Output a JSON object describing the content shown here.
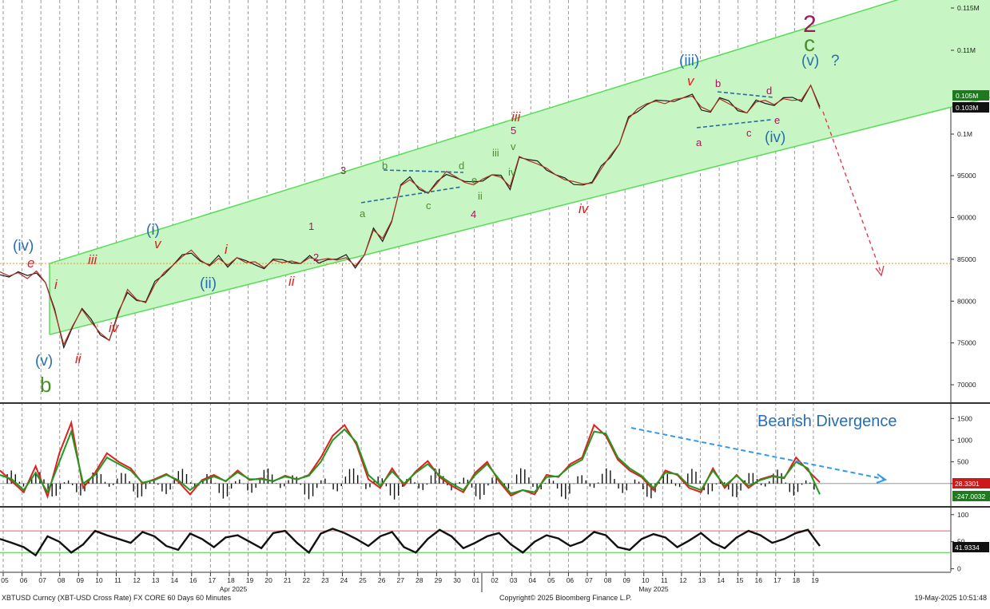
{
  "footer": {
    "instrument": "XBTUSD Curncy (XBT-USD Cross Rate) FX CORE 60 Days 60 Minutes",
    "copyright": "Copyright© 2025 Bloomberg Finance L.P.",
    "timestamp": "19-May-2025 10:51:48"
  },
  "colors": {
    "channel_fill": "#c8f5c4",
    "channel_line": "#55dd55",
    "price_line": "#b03020",
    "price_line2": "#1b1b1b",
    "macd_fast": "#e02020",
    "macd_slow": "#1e9a1e",
    "histogram": "#111111",
    "rsi_line": "#111111",
    "rsi_upper": "#e06060",
    "rsi_lower": "#40d040",
    "level_line": "#d6a040",
    "divergence_arrow": "#3399ee",
    "projection_arrow": "#e0304a",
    "wave_blue": "#2a6db0",
    "wave_red": "#dd2020",
    "wave_maroon": "#a0185a",
    "wave_green": "#4a8f2a"
  },
  "chart_data": [
    {
      "type": "line",
      "panel": "price",
      "title": "",
      "x_axis": {
        "ticks": [
          "05",
          "06",
          "07",
          "08",
          "09",
          "10",
          "11",
          "12",
          "13",
          "14",
          "16",
          "17",
          "18",
          "19",
          "20",
          "21",
          "22",
          "23",
          "24",
          "25",
          "26",
          "27",
          "28",
          "29",
          "30",
          "01",
          "02",
          "03",
          "04",
          "05",
          "06",
          "07",
          "08",
          "09",
          "10",
          "11",
          "12",
          "13",
          "14",
          "15",
          "16",
          "17",
          "18",
          "19"
        ],
        "month_labels": [
          "Apr 2025",
          "May 2025"
        ]
      },
      "y_axis": {
        "ticks": [
          "0.115M",
          "0.11M",
          "0.1M",
          "95000",
          "90000",
          "85000",
          "80000",
          "75000",
          "70000"
        ],
        "ylim": [
          68000,
          116000
        ]
      },
      "series": [
        {
          "x": [
            0,
            1,
            2,
            3,
            4,
            5,
            6,
            7,
            8,
            9,
            10,
            11,
            12,
            13,
            14,
            15,
            16,
            17,
            18,
            19,
            20,
            21,
            22,
            23,
            24,
            25,
            26,
            27,
            28,
            29,
            30,
            31,
            32,
            33,
            34,
            35,
            36,
            37,
            38,
            39,
            40,
            41,
            42,
            43,
            44,
            45,
            46,
            47,
            48,
            49,
            50,
            51,
            52,
            53,
            54,
            55,
            56,
            57,
            58,
            59,
            60,
            61,
            62,
            63,
            64,
            65,
            66,
            67,
            68,
            69,
            70,
            71,
            72,
            73,
            74,
            75,
            76,
            77,
            78,
            79,
            80,
            81,
            82,
            83,
            84,
            85,
            86,
            87,
            88,
            89,
            90
          ],
          "values": [
            83500,
            83000,
            83400,
            82700,
            83600,
            82200,
            78800,
            74800,
            77100,
            79000,
            77500,
            76200,
            75300,
            78500,
            81400,
            80200,
            79800,
            82000,
            83400,
            84300,
            85300,
            86100,
            84900,
            84200,
            85100,
            84300,
            85200,
            84600,
            84700,
            84000,
            84900,
            84600,
            84800,
            84500,
            85200,
            84900,
            85100,
            84900,
            85200,
            84200,
            85500,
            88500,
            87500,
            89600,
            93800,
            94500,
            93600,
            92900,
            94100,
            95500,
            94900,
            94200,
            93900,
            94600,
            95100,
            94800,
            93700,
            97300,
            96800,
            96400,
            95900,
            95100,
            94500,
            94300,
            94000,
            94100,
            95800,
            97400,
            98800,
            101800,
            103000,
            103600,
            103900,
            103600,
            104100,
            104300,
            104500,
            103200,
            102700,
            104200,
            103600,
            103000,
            102500,
            103800,
            104000,
            103500,
            104200,
            104000,
            104100,
            105800,
            103000
          ]
        }
      ],
      "reference_lines": [
        84500
      ],
      "price_badges": [
        "0.105M",
        "0.103M"
      ],
      "channel": {
        "lower": [
          [
            0,
            76000
          ],
          [
            90,
            101500
          ]
        ],
        "upper": [
          [
            0,
            84500
          ],
          [
            90,
            110300
          ]
        ]
      },
      "wave_labels": [
        {
          "text": "(iv)",
          "color": "wave_blue"
        },
        {
          "text": "e",
          "color": "wave_red"
        },
        {
          "text": "i",
          "color": "wave_red"
        },
        {
          "text": "(v)",
          "color": "wave_blue"
        },
        {
          "text": "b",
          "color": "wave_green"
        },
        {
          "text": "iii",
          "color": "wave_red"
        },
        {
          "text": "ii",
          "color": "wave_red"
        },
        {
          "text": "iv",
          "color": "wave_red"
        },
        {
          "text": "(i)",
          "color": "wave_blue"
        },
        {
          "text": "v",
          "color": "wave_red"
        },
        {
          "text": "(ii)",
          "color": "wave_blue"
        },
        {
          "text": "i",
          "color": "wave_red"
        },
        {
          "text": "ii",
          "color": "wave_red"
        },
        {
          "text": "1",
          "color": "wave_maroon"
        },
        {
          "text": "2",
          "color": "wave_maroon"
        },
        {
          "text": "3",
          "color": "wave_maroon"
        },
        {
          "text": "a",
          "color": "wave_green"
        },
        {
          "text": "b",
          "color": "wave_green"
        },
        {
          "text": "c",
          "color": "wave_green"
        },
        {
          "text": "d",
          "color": "wave_green"
        },
        {
          "text": "e",
          "color": "wave_green"
        },
        {
          "text": "ii",
          "color": "wave_green"
        },
        {
          "text": "4",
          "color": "wave_maroon"
        },
        {
          "text": "iii",
          "color": "wave_green"
        },
        {
          "text": "iv",
          "color": "wave_green"
        },
        {
          "text": "5",
          "color": "wave_maroon"
        },
        {
          "text": "v",
          "color": "wave_green"
        },
        {
          "text": "iii",
          "color": "wave_red"
        },
        {
          "text": "iv",
          "color": "wave_red"
        },
        {
          "text": "(iii)",
          "color": "wave_blue"
        },
        {
          "text": "v",
          "color": "wave_red"
        },
        {
          "text": "a",
          "color": "wave_maroon"
        },
        {
          "text": "b",
          "color": "wave_maroon"
        },
        {
          "text": "c",
          "color": "wave_maroon"
        },
        {
          "text": "d",
          "color": "wave_maroon"
        },
        {
          "text": "e",
          "color": "wave_maroon"
        },
        {
          "text": "(iv)",
          "color": "wave_blue"
        },
        {
          "text": "(v)",
          "color": "wave_blue"
        },
        {
          "text": "?",
          "color": "wave_blue"
        },
        {
          "text": "2",
          "color": "wave_maroon"
        },
        {
          "text": "c",
          "color": "wave_green"
        }
      ]
    },
    {
      "type": "line",
      "panel": "macd",
      "annotation": "Bearish Divergence",
      "y_axis": {
        "ticks": [
          "1500",
          "1000",
          "500",
          "0"
        ],
        "ylim": [
          -500,
          1800
        ]
      },
      "badges": [
        "28.3301",
        "-247.0032"
      ],
      "series": [
        {
          "color": "macd_fast",
          "values": [
            300,
            50,
            -200,
            400,
            -300,
            700,
            1400,
            -100,
            250,
            700,
            500,
            350,
            0,
            100,
            220,
            50,
            -250,
            80,
            200,
            50,
            300,
            80,
            120,
            50,
            180,
            90,
            200,
            600,
            1100,
            1350,
            900,
            100,
            -100,
            350,
            -50,
            280,
            520,
            150,
            -50,
            -200,
            250,
            500,
            50,
            -280,
            -150,
            -250,
            200,
            150,
            450,
            600,
            1350,
            1100,
            550,
            300,
            150,
            -150,
            300,
            200,
            -100,
            -200,
            350,
            -100,
            200,
            -100,
            100,
            180,
            120,
            600,
            300,
            28
          ]
        },
        {
          "color": "macd_slow",
          "values": [
            200,
            100,
            -150,
            250,
            -200,
            500,
            1200,
            0,
            200,
            600,
            450,
            300,
            20,
            80,
            200,
            80,
            -150,
            60,
            160,
            60,
            260,
            100,
            100,
            60,
            160,
            100,
            180,
            500,
            1000,
            1250,
            950,
            200,
            -50,
            280,
            0,
            250,
            450,
            180,
            0,
            -150,
            200,
            450,
            100,
            -230,
            -150,
            -200,
            150,
            170,
            400,
            550,
            1200,
            1150,
            600,
            350,
            180,
            -100,
            250,
            220,
            -50,
            -150,
            300,
            -50,
            180,
            -50,
            80,
            160,
            140,
            500,
            350,
            -247
          ]
        }
      ]
    },
    {
      "type": "line",
      "panel": "rsi",
      "y_axis": {
        "ticks": [
          "100",
          "50",
          "0"
        ],
        "ylim": [
          -5,
          110
        ]
      },
      "reference_lines": [
        70,
        30
      ],
      "badges": [
        "41.9334"
      ],
      "series": [
        {
          "color": "rsi_line",
          "values": [
            55,
            48,
            40,
            25,
            60,
            50,
            30,
            45,
            70,
            62,
            55,
            48,
            68,
            60,
            42,
            35,
            65,
            55,
            40,
            58,
            62,
            50,
            38,
            66,
            70,
            48,
            30,
            65,
            74,
            66,
            55,
            42,
            60,
            68,
            40,
            30,
            55,
            72,
            60,
            38,
            48,
            60,
            66,
            45,
            30,
            50,
            62,
            56,
            42,
            50,
            68,
            62,
            40,
            35,
            55,
            64,
            58,
            40,
            52,
            66,
            48,
            38,
            58,
            70,
            62,
            48,
            55,
            66,
            72,
            42
          ]
        }
      ]
    }
  ]
}
